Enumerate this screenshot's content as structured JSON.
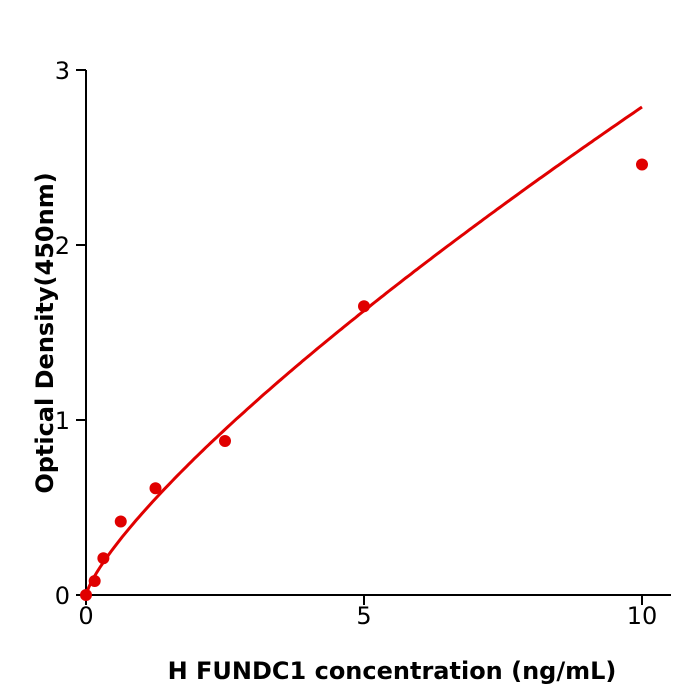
{
  "chart_data": {
    "type": "scatter",
    "title": "",
    "xlabel": "H  FUNDC1 concentration (ng/mL)",
    "ylabel": "Optical Density(450nm)",
    "xlim": [
      0,
      10.5
    ],
    "ylim": [
      0,
      3
    ],
    "xticks": [
      "0",
      "5",
      "10"
    ],
    "yticks": [
      "0",
      "1",
      "2",
      "3"
    ],
    "grid": false,
    "color": "#e00000",
    "series": [
      {
        "x": [
          0,
          0.156,
          0.3125,
          0.625,
          1.25,
          2.5,
          5,
          10
        ],
        "y": [
          0.0,
          0.08,
          0.21,
          0.42,
          0.61,
          0.88,
          1.65,
          2.46
        ]
      }
    ],
    "fit_curve": true
  }
}
